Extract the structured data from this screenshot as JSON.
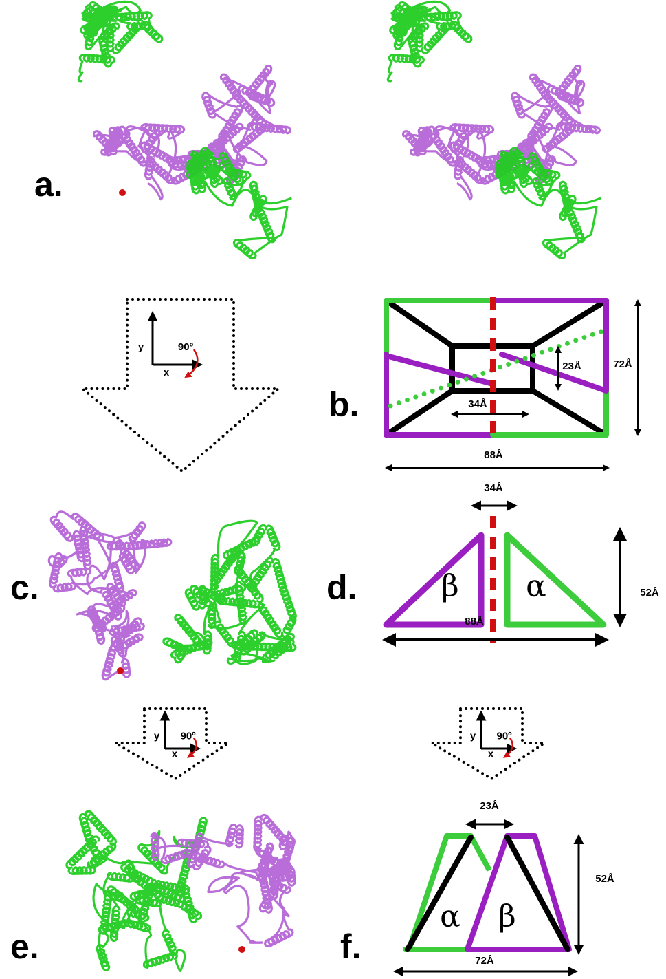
{
  "panel_labels": [
    "a.",
    "b.",
    "c.",
    "d.",
    "e.",
    "f."
  ],
  "rotation_icons": [
    {
      "y_label": "y",
      "x_label": "x",
      "angle": "90º"
    },
    {
      "y_label": "y",
      "x_label": "x",
      "angle": "90º"
    },
    {
      "y_label": "y",
      "x_label": "x",
      "angle": "90º"
    }
  ],
  "diagram_b": {
    "inner_height": "23Å",
    "height": "72Å",
    "inner_width": "34Å",
    "width": "88Å"
  },
  "diagram_d": {
    "gap": "34Å",
    "height": "52Å",
    "width": "88Å",
    "left_subunit": "β",
    "right_subunit": "α"
  },
  "diagram_f": {
    "gap": "23Å",
    "height": "52Å",
    "width": "72Å",
    "left_subunit": "α",
    "right_subunit": "β"
  }
}
